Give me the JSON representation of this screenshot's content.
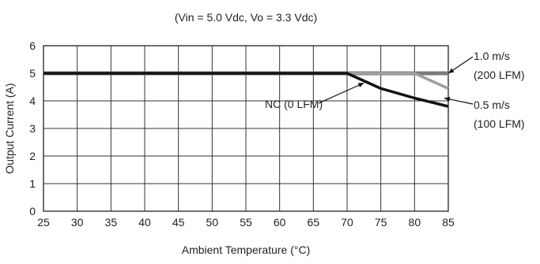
{
  "chart_data": {
    "type": "line",
    "subtitle": "(Vin = 5.0 Vdc, Vo = 3.3 Vdc)",
    "xlabel": "Ambient Temperature (°C)",
    "ylabel": "Output Current (A)",
    "xlim": [
      25,
      85
    ],
    "ylim": [
      0,
      6
    ],
    "xticks": [
      25,
      30,
      35,
      40,
      45,
      50,
      55,
      60,
      65,
      70,
      75,
      80,
      85
    ],
    "yticks": [
      0,
      1,
      2,
      3,
      4,
      5,
      6
    ],
    "grid": true,
    "series": [
      {
        "name": "1.0 m/s (200 LFM)",
        "label_line1": "1.0 m/s",
        "label_line2": "(200 LFM)",
        "color": "#7a7a7a",
        "x": [
          25,
          85
        ],
        "y": [
          5.0,
          5.0
        ]
      },
      {
        "name": "0.5 m/s (100 LFM)",
        "label_line1": "0.5 m/s",
        "label_line2": "(100 LFM)",
        "color": "#a0a0a0",
        "x": [
          25,
          80,
          85
        ],
        "y": [
          5.0,
          5.0,
          4.45
        ]
      },
      {
        "name": "NC (0 LFM)",
        "label_line1": "NC (0 LFM)",
        "color": "#111111",
        "x": [
          25,
          70,
          75,
          80,
          85
        ],
        "y": [
          5.0,
          5.0,
          4.45,
          4.1,
          3.8
        ]
      }
    ]
  }
}
